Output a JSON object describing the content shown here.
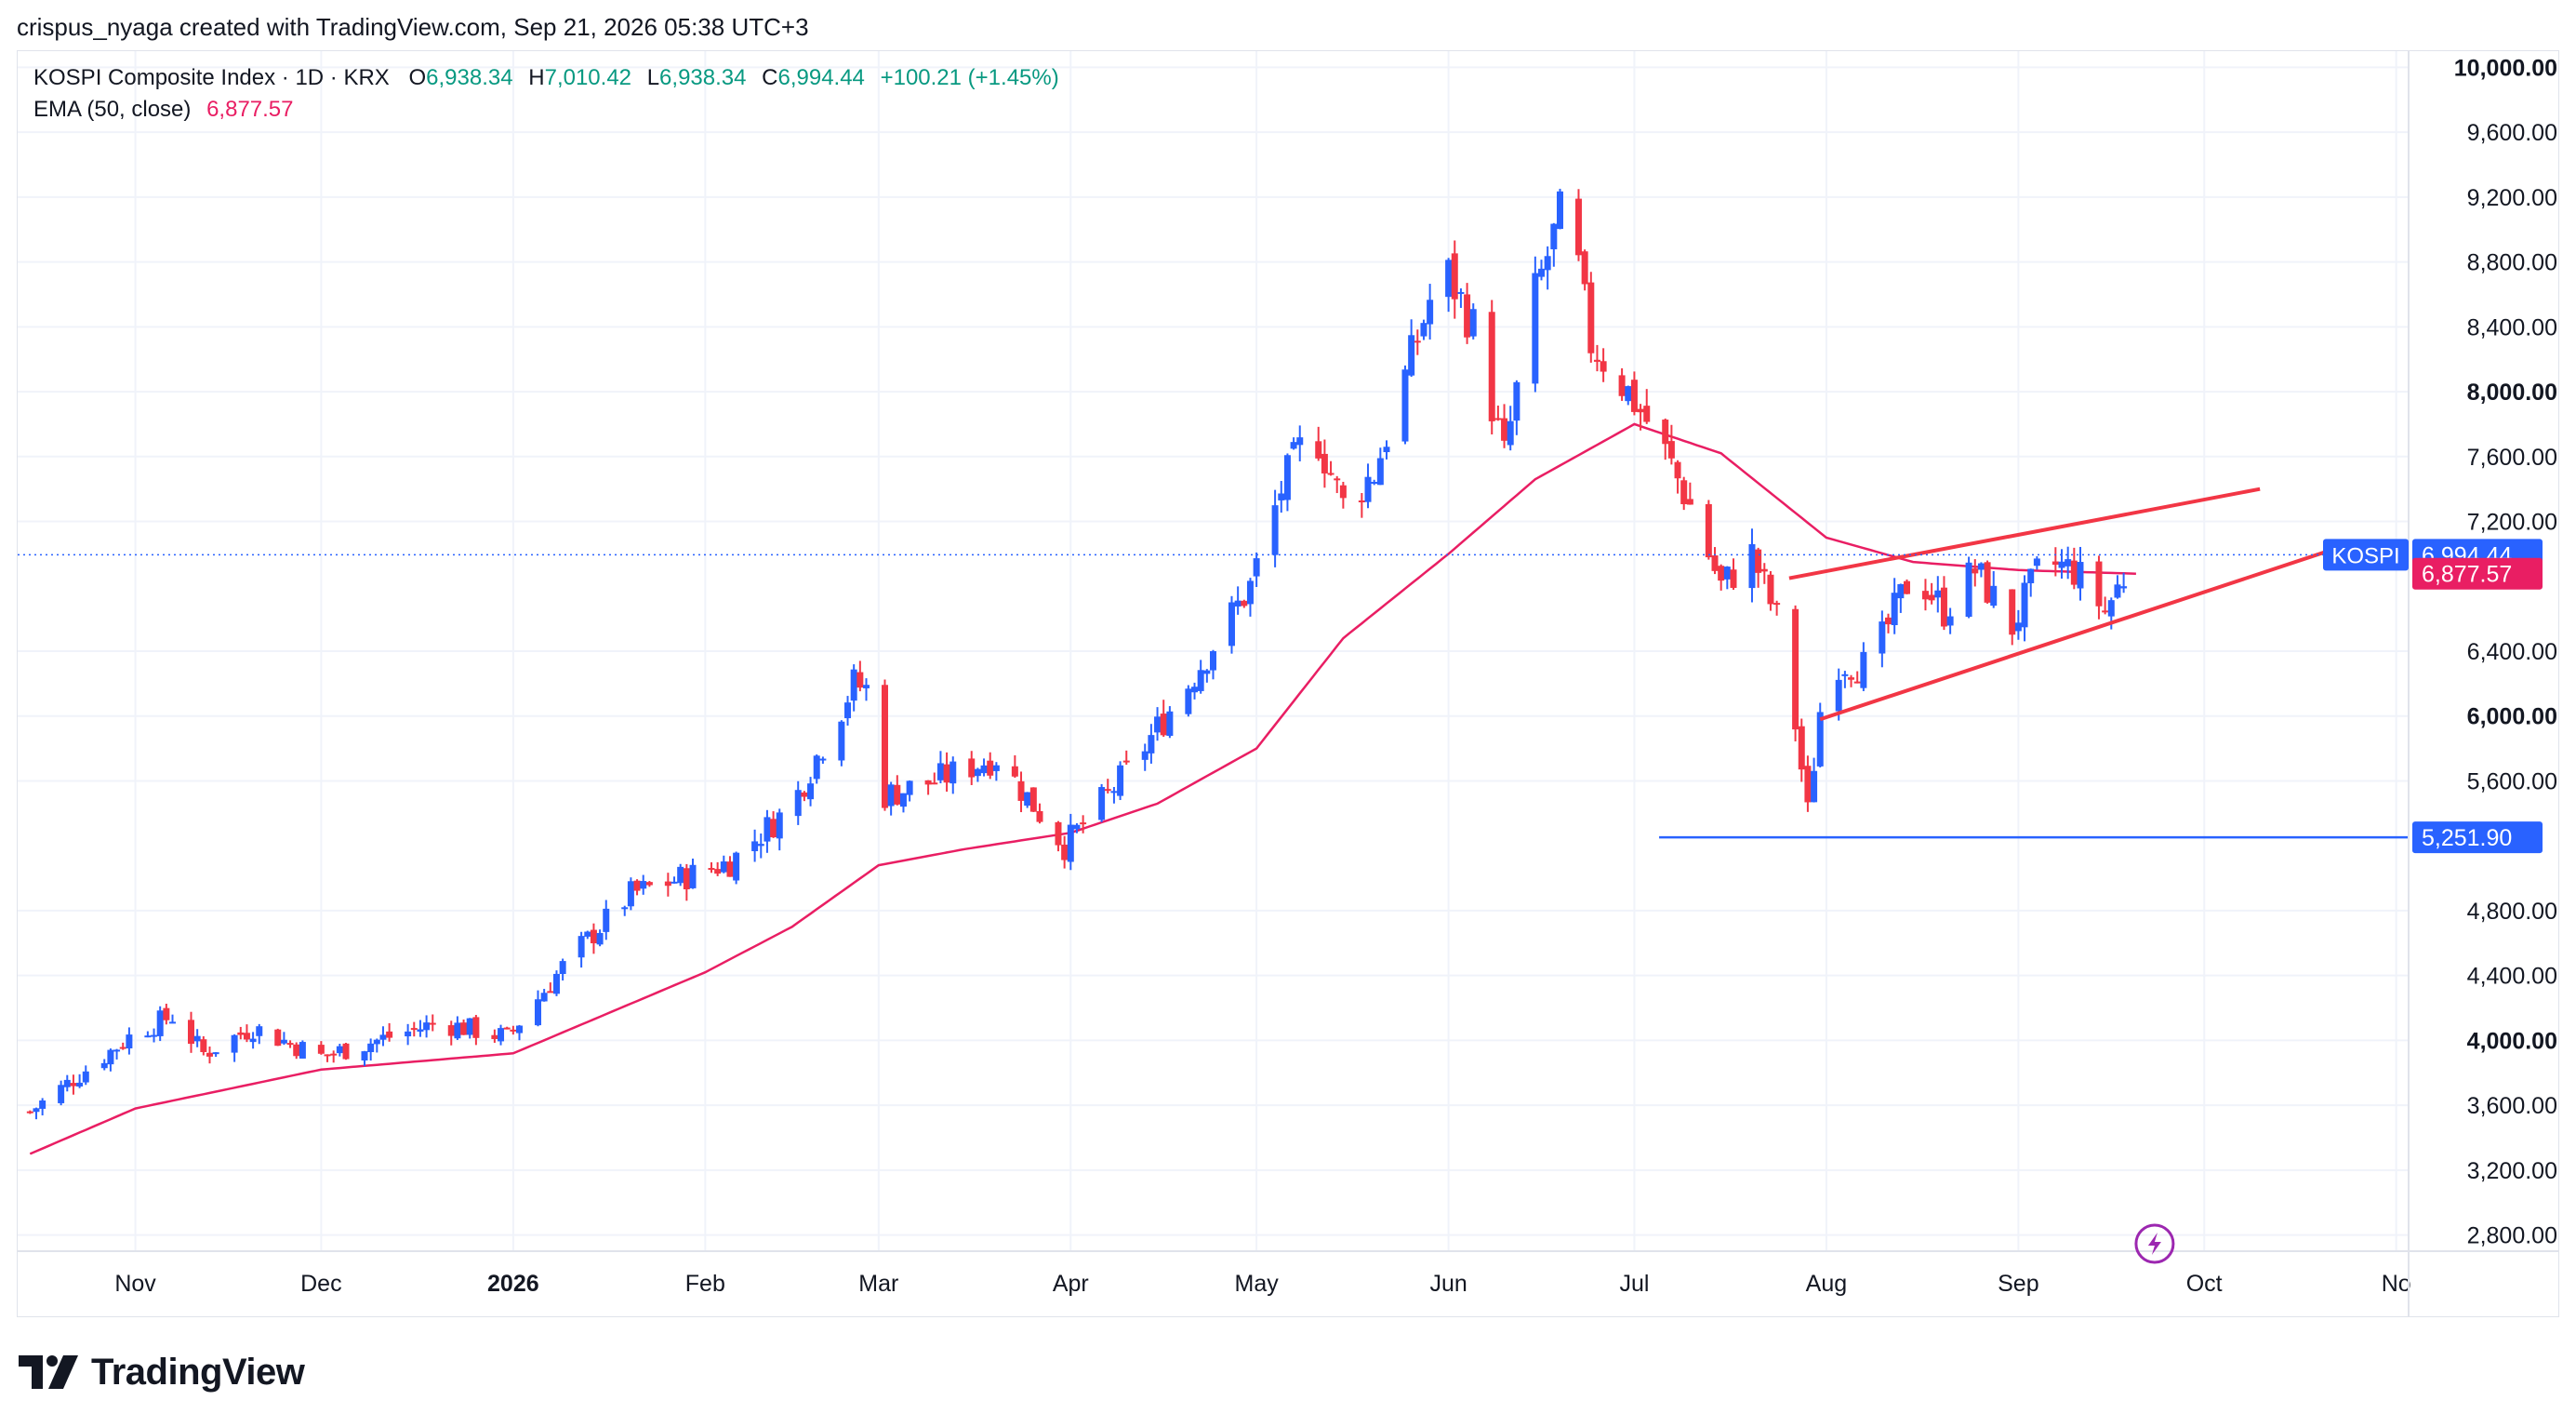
{
  "header": {
    "text": "crispus_nyaga created with TradingView.com, Sep 21, 2026 05:38 UTC+3"
  },
  "legend": {
    "symbol": "KOSPI Composite Index · 1D · KRX",
    "o_label": "O",
    "o_value": "6,938.34",
    "h_label": "H",
    "h_value": "7,010.42",
    "l_label": "L",
    "l_value": "6,938.34",
    "c_label": "C",
    "c_value": "6,994.44",
    "change": "+100.21 (+1.45%)",
    "ema_label": "EMA (50, close)",
    "ema_value": "6,877.57"
  },
  "price_labels": {
    "symbol_tag": "KOSPI",
    "last_price": "6,994.44",
    "ema_price": "6,877.57",
    "support_price": "5,251.90"
  },
  "footer": {
    "logo_text": "TradingView"
  },
  "colors": {
    "up": "#089981",
    "candle_up": "#2962ff",
    "candle_down": "#f23645",
    "ema": "#e91e63",
    "trendline": "#f23645",
    "support": "#2962ff",
    "grid": "#f0f3fa",
    "axis_text": "#131722"
  },
  "chart_data": {
    "type": "candlestick",
    "title": "KOSPI Composite Index · 1D · KRX",
    "y_axis": {
      "ticks": [
        "2,800.00",
        "3,200.00",
        "3,600.00",
        "4,000.00",
        "4,400.00",
        "4,800.00",
        "5,600.00",
        "6,000.00",
        "6,400.00",
        "7,200.00",
        "7,600.00",
        "8,000.00",
        "8,400.00",
        "8,800.00",
        "9,200.00",
        "9,600.00",
        "10,000.00"
      ],
      "bold_ticks": [
        "4,000.00",
        "6,000.00",
        "8,000.00",
        "10,000.00"
      ],
      "ylim": [
        2700,
        10100
      ],
      "side": "right"
    },
    "x_axis": {
      "ticks": [
        "Nov",
        "Dec",
        "2026",
        "Feb",
        "Mar",
        "Apr",
        "May",
        "Jun",
        "Jul",
        "Aug",
        "Sep",
        "Oct",
        "No"
      ],
      "bold_ticks": [
        "2026"
      ]
    },
    "ema_series_name": "EMA (50, close)",
    "ema_anchors": [
      {
        "d": "2025-10-15",
        "v": 3300
      },
      {
        "d": "2025-11-01",
        "v": 3580
      },
      {
        "d": "2025-12-01",
        "v": 3820
      },
      {
        "d": "2026-01-01",
        "v": 3920
      },
      {
        "d": "2026-02-01",
        "v": 4420
      },
      {
        "d": "2026-02-15",
        "v": 4700
      },
      {
        "d": "2026-03-01",
        "v": 5080
      },
      {
        "d": "2026-03-15",
        "v": 5180
      },
      {
        "d": "2026-04-01",
        "v": 5280
      },
      {
        "d": "2026-04-15",
        "v": 5460
      },
      {
        "d": "2026-05-01",
        "v": 5800
      },
      {
        "d": "2026-05-15",
        "v": 6480
      },
      {
        "d": "2026-06-01",
        "v": 7000
      },
      {
        "d": "2026-06-15",
        "v": 7460
      },
      {
        "d": "2026-07-01",
        "v": 7800
      },
      {
        "d": "2026-07-15",
        "v": 7620
      },
      {
        "d": "2026-08-01",
        "v": 7100
      },
      {
        "d": "2026-08-15",
        "v": 6950
      },
      {
        "d": "2026-09-01",
        "v": 6900
      },
      {
        "d": "2026-09-20",
        "v": 6877.57
      }
    ],
    "close_anchors": [
      {
        "d": "2025-10-15",
        "v": 3560
      },
      {
        "d": "2025-11-01",
        "v": 4050
      },
      {
        "d": "2025-11-07",
        "v": 4150
      },
      {
        "d": "2025-11-12",
        "v": 3920
      },
      {
        "d": "2025-11-20",
        "v": 4080
      },
      {
        "d": "2025-12-01",
        "v": 3900
      },
      {
        "d": "2025-12-10",
        "v": 4000
      },
      {
        "d": "2025-12-20",
        "v": 4110
      },
      {
        "d": "2025-12-31",
        "v": 4020
      },
      {
        "d": "2026-01-10",
        "v": 4500
      },
      {
        "d": "2026-01-20",
        "v": 4900
      },
      {
        "d": "2026-02-05",
        "v": 5100
      },
      {
        "d": "2026-02-15",
        "v": 5450
      },
      {
        "d": "2026-02-25",
        "v": 6200
      },
      {
        "d": "2026-02-28",
        "v": 6150
      },
      {
        "d": "2026-03-01",
        "v": 5500
      },
      {
        "d": "2026-03-10",
        "v": 5600
      },
      {
        "d": "2026-03-20",
        "v": 5750
      },
      {
        "d": "2026-03-31",
        "v": 5200
      },
      {
        "d": "2026-04-10",
        "v": 5650
      },
      {
        "d": "2026-04-20",
        "v": 6200
      },
      {
        "d": "2026-04-30",
        "v": 6800
      },
      {
        "d": "2026-05-05",
        "v": 7400
      },
      {
        "d": "2026-05-10",
        "v": 7800
      },
      {
        "d": "2026-05-15",
        "v": 7300
      },
      {
        "d": "2026-05-20",
        "v": 7500
      },
      {
        "d": "2026-05-31",
        "v": 8800
      },
      {
        "d": "2026-06-05",
        "v": 8400
      },
      {
        "d": "2026-06-10",
        "v": 7600
      },
      {
        "d": "2026-06-15",
        "v": 8600
      },
      {
        "d": "2026-06-20",
        "v": 9200
      },
      {
        "d": "2026-06-24",
        "v": 8300
      },
      {
        "d": "2026-06-30",
        "v": 8000
      },
      {
        "d": "2026-07-05",
        "v": 7700
      },
      {
        "d": "2026-07-10",
        "v": 7300
      },
      {
        "d": "2026-07-15",
        "v": 6800
      },
      {
        "d": "2026-07-20",
        "v": 7000
      },
      {
        "d": "2026-07-25",
        "v": 6500
      },
      {
        "d": "2026-07-29",
        "v": 5400
      },
      {
        "d": "2026-08-01",
        "v": 6350
      },
      {
        "d": "2026-08-08",
        "v": 6300
      },
      {
        "d": "2026-08-15",
        "v": 6900
      },
      {
        "d": "2026-08-20",
        "v": 6650
      },
      {
        "d": "2026-08-25",
        "v": 6900
      },
      {
        "d": "2026-08-31",
        "v": 6550
      },
      {
        "d": "2026-09-05",
        "v": 6950
      },
      {
        "d": "2026-09-10",
        "v": 6900
      },
      {
        "d": "2026-09-15",
        "v": 6650
      },
      {
        "d": "2026-09-20",
        "v": 6994.44
      }
    ],
    "trendline_upper": {
      "from": {
        "d": "2026-07-26",
        "v": 6850
      },
      "to": {
        "d": "2026-10-10",
        "v": 7400
      }
    },
    "trendline_lower": {
      "from": {
        "d": "2026-07-31",
        "v": 5980
      },
      "to": {
        "d": "2026-10-22",
        "v": 7030
      }
    },
    "support_line": {
      "from": "2026-07-05",
      "value": 5251.9
    },
    "last_price_value": 6994.44,
    "ema_last_value": 6877.57,
    "x_start": "2025-10-13",
    "x_end": "2026-11-03"
  }
}
